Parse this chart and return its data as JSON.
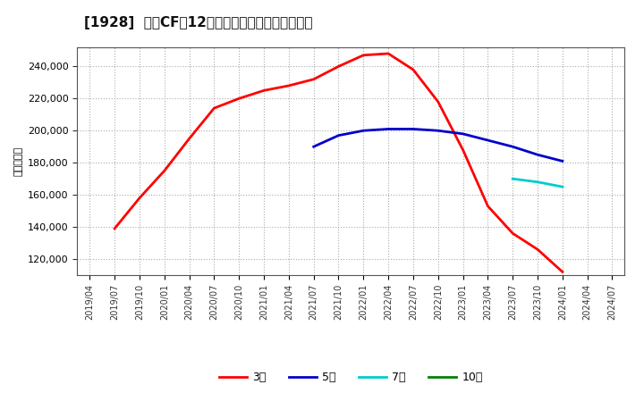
{
  "title": "[1928]  営業CFだ12か月移動合計の平均値の推移",
  "ylabel": "（百万円）",
  "background_color": "#ffffff",
  "plot_bg_color": "#ffffff",
  "grid_color": "#aaaaaa",
  "ylim": [
    110000,
    252000
  ],
  "yticks": [
    120000,
    140000,
    160000,
    180000,
    200000,
    220000,
    240000
  ],
  "series": {
    "3year": {
      "label": "3年",
      "color": "#ff0000",
      "dates": [
        "2019/07",
        "2019/10",
        "2020/01",
        "2020/04",
        "2020/07",
        "2020/10",
        "2021/01",
        "2021/04",
        "2021/07",
        "2021/10",
        "2022/01",
        "2022/04",
        "2022/07",
        "2022/10",
        "2023/01",
        "2023/04",
        "2023/07",
        "2023/10",
        "2024/01"
      ],
      "values": [
        139000,
        158000,
        175000,
        195000,
        214000,
        220000,
        225000,
        228000,
        232000,
        240000,
        247000,
        248000,
        238000,
        218000,
        188000,
        153000,
        136000,
        126000,
        112000
      ]
    },
    "5year": {
      "label": "5年",
      "color": "#0000cc",
      "dates": [
        "2021/07",
        "2021/10",
        "2022/01",
        "2022/04",
        "2022/07",
        "2022/10",
        "2023/01",
        "2023/04",
        "2023/07",
        "2023/10",
        "2024/01"
      ],
      "values": [
        190000,
        197000,
        200000,
        201000,
        201000,
        200000,
        198000,
        194000,
        190000,
        185000,
        181000
      ]
    },
    "7year": {
      "label": "7年",
      "color": "#00cccc",
      "dates": [
        "2023/07",
        "2023/10",
        "2024/01"
      ],
      "values": [
        170000,
        168000,
        165000
      ]
    },
    "10year": {
      "label": "10年",
      "color": "#008000",
      "dates": [],
      "values": []
    }
  },
  "xtick_labels": [
    "2019/04",
    "2019/07",
    "2019/10",
    "2020/01",
    "2020/04",
    "2020/07",
    "2020/10",
    "2021/01",
    "2021/04",
    "2021/07",
    "2021/10",
    "2022/01",
    "2022/04",
    "2022/07",
    "2022/10",
    "2023/01",
    "2023/04",
    "2023/07",
    "2023/10",
    "2024/01",
    "2024/04",
    "2024/07"
  ]
}
